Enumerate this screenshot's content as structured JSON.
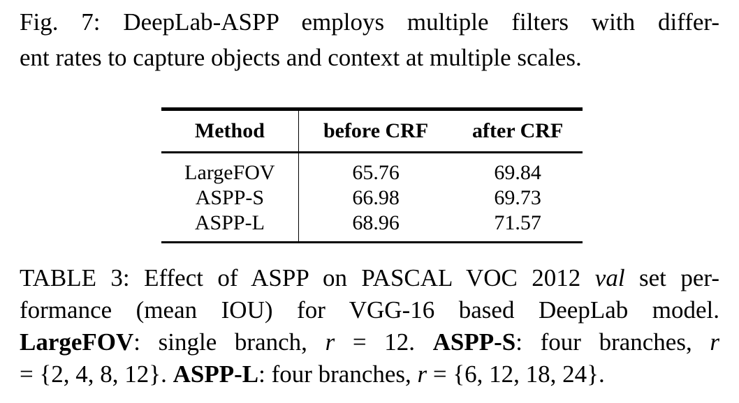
{
  "figure_caption": {
    "line1": "Fig. 7: DeepLab-ASPP employs multiple filters with differ-",
    "line2": "ent rates to capture objects and context at multiple scales."
  },
  "table": {
    "headers": [
      "Method",
      "before CRF",
      "after CRF"
    ],
    "rows": [
      [
        "LargeFOV",
        "65.76",
        "69.84"
      ],
      [
        "ASPP-S",
        "66.98",
        "69.73"
      ],
      [
        "ASPP-L",
        "68.96",
        "71.57"
      ]
    ]
  },
  "table_caption": {
    "l1_pre": "TABLE 3: Effect of ASPP on PASCAL VOC 2012 ",
    "l1_it": "val",
    "l1_post": " set per-",
    "l2": "formance (mean IOU) for VGG-16 based DeepLab model.",
    "l3_b1": "LargeFOV",
    "l3_t1": ": single branch, ",
    "l3_r1": "r",
    "l3_t2": " = 12. ",
    "l3_b2": "ASPP-S",
    "l3_t3": ": four branches, ",
    "l3_r2": "r",
    "l4_t1": "= {2, 4, 8, 12}. ",
    "l4_b1": "ASPP-L",
    "l4_t2": ": four branches, ",
    "l4_r1": "r",
    "l4_t3": " = {6, 12, 18, 24}."
  }
}
